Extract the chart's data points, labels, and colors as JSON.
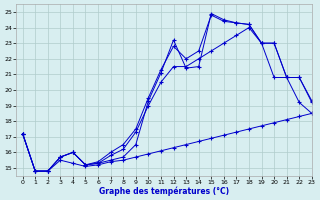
{
  "title": "Graphe des températures (°C)",
  "bg_color": "#d8eef0",
  "grid_color": "#b0cccc",
  "line_color": "#0000cc",
  "xlim": [
    -0.5,
    23
  ],
  "ylim": [
    14.5,
    25.5
  ],
  "xticks": [
    0,
    1,
    2,
    3,
    4,
    5,
    6,
    7,
    8,
    9,
    10,
    11,
    12,
    13,
    14,
    15,
    16,
    17,
    18,
    19,
    20,
    21,
    22,
    23
  ],
  "yticks": [
    15,
    16,
    17,
    18,
    19,
    20,
    21,
    22,
    23,
    24,
    25
  ],
  "series": [
    {
      "x": [
        0,
        1,
        2,
        3,
        4,
        5,
        6,
        7,
        8,
        9,
        10,
        11,
        12,
        13,
        14,
        15,
        16,
        17,
        18,
        19,
        20,
        21,
        22,
        23
      ],
      "y": [
        17.2,
        14.8,
        14.8,
        15.7,
        16.0,
        15.2,
        15.3,
        15.5,
        15.7,
        16.5,
        19.3,
        21.1,
        23.2,
        21.4,
        21.5,
        24.9,
        24.5,
        24.3,
        24.2,
        23.0,
        23.0,
        20.8,
        19.2,
        18.5
      ]
    },
    {
      "x": [
        0,
        1,
        2,
        3,
        4,
        5,
        6,
        7,
        8,
        9,
        10,
        11,
        12,
        13,
        14,
        15,
        16,
        17,
        18,
        19,
        20,
        21,
        22,
        23
      ],
      "y": [
        17.2,
        14.8,
        14.8,
        15.7,
        16.0,
        15.2,
        15.3,
        15.8,
        16.2,
        17.3,
        19.0,
        20.5,
        21.5,
        21.5,
        22.0,
        22.5,
        23.0,
        23.5,
        24.0,
        23.0,
        20.8,
        20.8,
        20.8,
        19.3
      ]
    },
    {
      "x": [
        0,
        1,
        2,
        3,
        4,
        5,
        6,
        7,
        8,
        9,
        10,
        11,
        12,
        13,
        14,
        15,
        16,
        17,
        18,
        19,
        20,
        21,
        22,
        23
      ],
      "y": [
        17.2,
        14.8,
        14.8,
        15.5,
        15.3,
        15.1,
        15.2,
        15.4,
        15.5,
        15.7,
        15.9,
        16.1,
        16.3,
        16.5,
        16.7,
        16.9,
        17.1,
        17.3,
        17.5,
        17.7,
        17.9,
        18.1,
        18.3,
        18.5
      ]
    },
    {
      "x": [
        0,
        1,
        2,
        3,
        4,
        5,
        6,
        7,
        8,
        9,
        10,
        11,
        12,
        13,
        14,
        15,
        16,
        17,
        18,
        19,
        20,
        21,
        22,
        23
      ],
      "y": [
        17.2,
        14.8,
        14.8,
        15.7,
        16.0,
        15.2,
        15.4,
        16.0,
        16.5,
        17.5,
        19.5,
        21.3,
        22.8,
        22.0,
        22.5,
        24.8,
        24.4,
        24.3,
        24.2,
        23.0,
        23.0,
        20.8,
        20.8,
        19.2
      ]
    }
  ]
}
